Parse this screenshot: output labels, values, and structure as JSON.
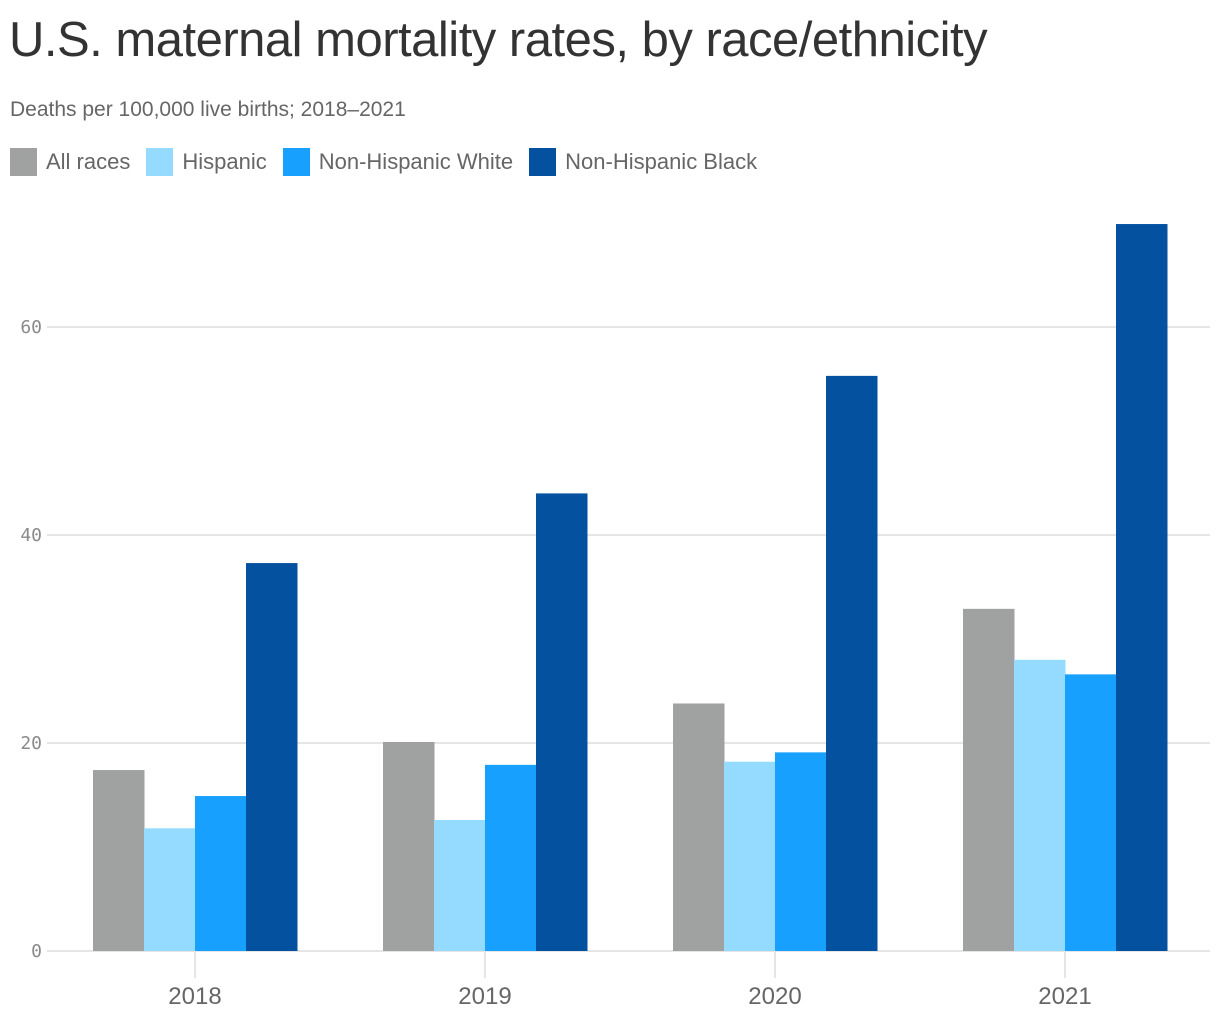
{
  "chart_data": {
    "type": "bar",
    "title": "U.S. maternal mortality rates, by race/ethnicity",
    "subtitle": "Deaths per 100,000 live births; 2018–2021",
    "xlabel": "",
    "ylabel": "",
    "categories": [
      "2018",
      "2019",
      "2020",
      "2021"
    ],
    "series": [
      {
        "name": "All races",
        "color": "#a0a1a1",
        "values": [
          17.4,
          20.1,
          23.8,
          32.9
        ]
      },
      {
        "name": "Hispanic",
        "color": "#94dbff",
        "values": [
          11.8,
          12.6,
          18.2,
          28.0
        ]
      },
      {
        "name": "Non-Hispanic White",
        "color": "#18a0ff",
        "values": [
          14.9,
          17.9,
          19.1,
          26.6
        ]
      },
      {
        "name": "Non-Hispanic Black",
        "color": "#0451a0",
        "values": [
          37.3,
          44.0,
          55.3,
          69.9
        ]
      }
    ],
    "yticks": [
      0,
      20,
      40,
      60
    ],
    "ytick_labels": [
      "0",
      "20",
      "40",
      "60"
    ],
    "ylim": [
      0,
      70
    ],
    "grid": true,
    "legend_position": "top-left"
  }
}
